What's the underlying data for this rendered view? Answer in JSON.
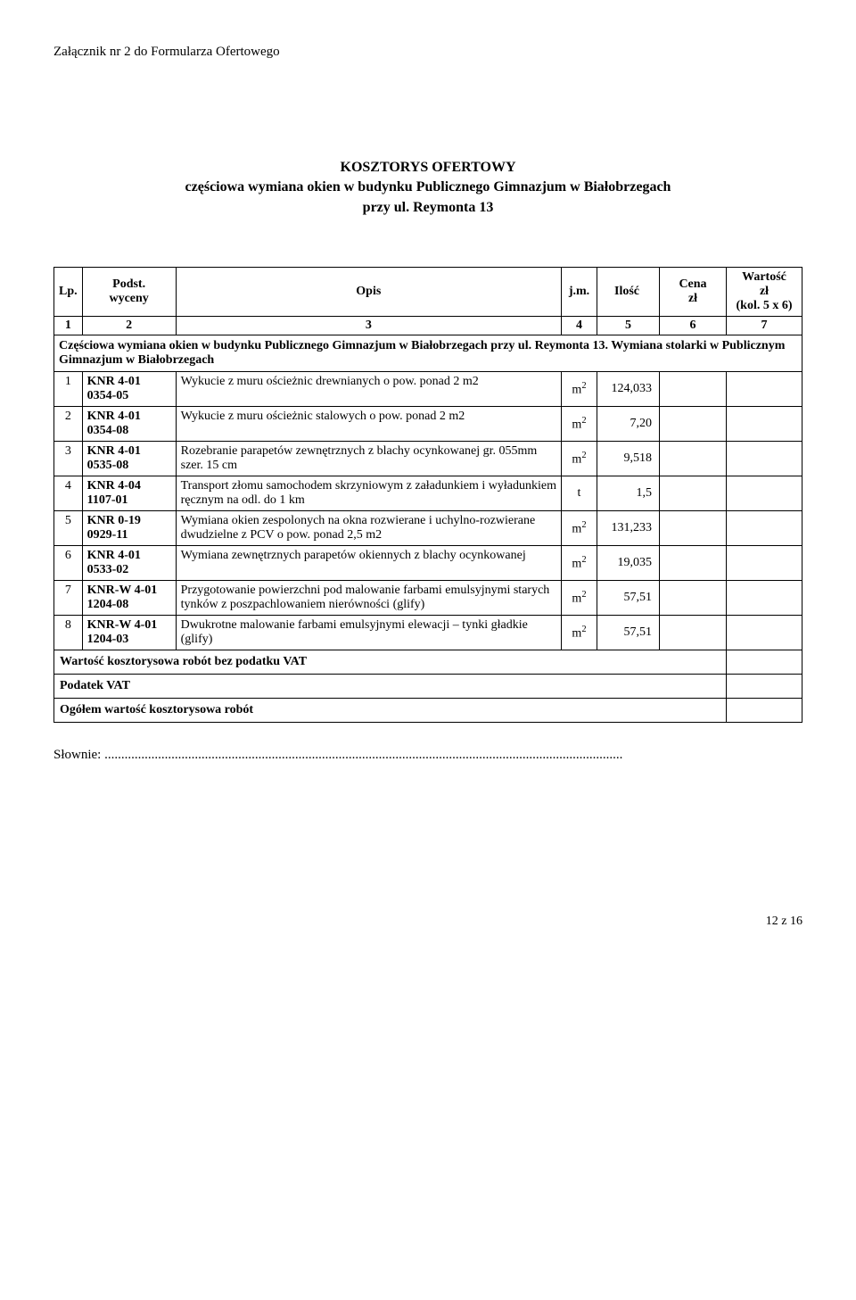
{
  "attachment": "Załącznik nr 2 do Formularza Ofertowego",
  "title": {
    "line1": "KOSZTORYS   OFERTOWY",
    "line2": "częściowa wymiana okien w budynku Publicznego Gimnazjum w Białobrzegach",
    "line3": "przy ul. Reymonta 13"
  },
  "header": {
    "lp": "Lp.",
    "podst": "Podst.\nwyceny",
    "opis": "Opis",
    "jm": "j.m.",
    "ilosc": "Ilość",
    "cena": "Cena\nzł",
    "wartosc": "Wartość\nzł\n(kol. 5 x 6)"
  },
  "coln": {
    "c1": "1",
    "c2": "2",
    "c3": "3",
    "c4": "4",
    "c5": "5",
    "c6": "6",
    "c7": "7"
  },
  "section": "Częściowa wymiana okien w budynku Publicznego Gimnazjum w Białobrzegach przy ul. Reymonta 13. Wymiana stolarki w Publicznym Gimnazjum w Białobrzegach",
  "rows": [
    {
      "lp": "1",
      "podst": "KNR 4-01 0354-05",
      "opis": "Wykucie z muru ościeżnic drewnianych o pow. ponad 2 m2",
      "jm": "m",
      "sup": "2",
      "ilosc": "124,033"
    },
    {
      "lp": "2",
      "podst": "KNR 4-01 0354-08",
      "opis": "Wykucie z muru ościeżnic stalowych o pow. ponad 2 m2",
      "jm": "m",
      "sup": "2",
      "ilosc": "7,20"
    },
    {
      "lp": "3",
      "podst": "KNR 4-01 0535-08",
      "opis": "Rozebranie parapetów zewnętrznych z blachy ocynkowanej gr. 055mm szer. 15 cm",
      "jm": "m",
      "sup": "2",
      "ilosc": "9,518"
    },
    {
      "lp": "4",
      "podst": "KNR 4-04 1107-01",
      "opis": "Transport złomu samochodem skrzyniowym z załadunkiem i wyładunkiem ręcznym na odl. do 1 km",
      "jm": "t",
      "sup": "",
      "ilosc": "1,5"
    },
    {
      "lp": "5",
      "podst": "KNR 0-19 0929-11",
      "opis": "Wymiana okien zespolonych na okna rozwierane i uchylno-rozwierane dwudzielne z PCV o pow. ponad 2,5 m2",
      "jm": "m",
      "sup": "2",
      "ilosc": "131,233"
    },
    {
      "lp": "6",
      "podst": "KNR 4-01 0533-02",
      "opis": "Wymiana zewnętrznych parapetów okiennych z blachy ocynkowanej",
      "jm": "m",
      "sup": "2",
      "ilosc": "19,035"
    },
    {
      "lp": "7",
      "podst": "KNR-W 4-01 1204-08",
      "opis": "Przygotowanie powierzchni pod malowanie farbami emulsyjnymi starych tynków z poszpachlowaniem nierówności (glify)",
      "jm": "m",
      "sup": "2",
      "ilosc": "57,51"
    },
    {
      "lp": "8",
      "podst": "KNR-W 4-01 1204-03",
      "opis": "Dwukrotne malowanie farbami emulsyjnymi elewacji – tynki gładkie (glify)",
      "jm": "m",
      "sup": "2",
      "ilosc": "57,51"
    }
  ],
  "summary": {
    "netto": "Wartość kosztorysowa robót bez podatku VAT",
    "vat": "Podatek VAT",
    "brutto": "Ogółem wartość kosztorysowa robót"
  },
  "slownie_label": "Słownie:",
  "slownie_dots": "...........................................................................................................................................................",
  "footer": "12 z 16"
}
